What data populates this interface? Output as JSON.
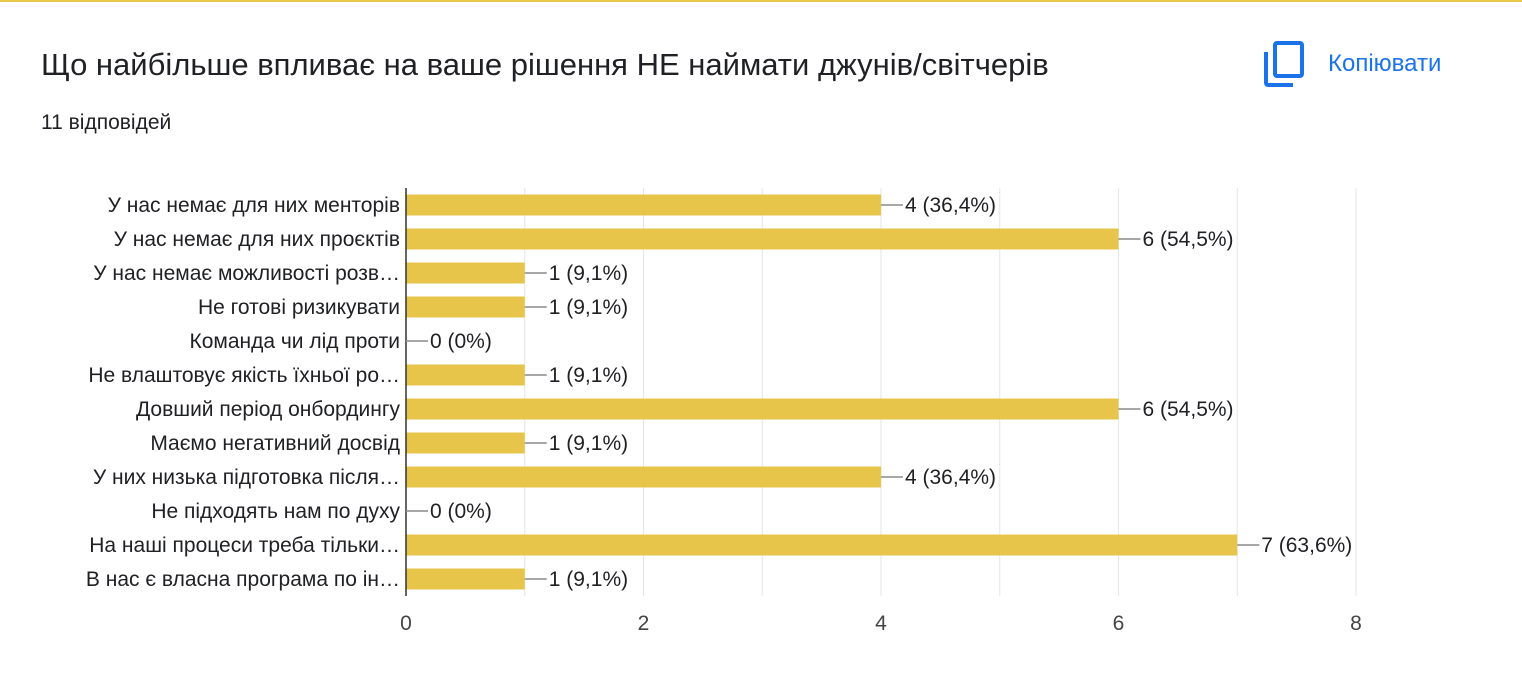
{
  "header": {
    "title": "Що найбільше впливає на ваше рішення НЕ наймати джунів/світчерів",
    "responses": "11 відповідей",
    "copy_label": "Копіювати",
    "copy_icon": "copy-icon"
  },
  "colors": {
    "bar": "#e6c54a",
    "accent": "#1a73e8",
    "top_border": "#e8c848",
    "gridline": "#e6e6e6",
    "axis": "#333333"
  },
  "chart_data": {
    "type": "bar",
    "orientation": "horizontal",
    "categories": [
      "У нас немає для них менторів",
      "У нас немає для них проєктів",
      "У нас немає можливості розв…",
      "Не готові ризикувати",
      "Команда чи лід проти",
      "Не влаштовує якість їхньої ро…",
      "Довший період онбордингу",
      "Маємо негативний досвід",
      "У них низька підготовка після…",
      "Не підходять нам по духу",
      "На наші процеси треба тільки…",
      "В нас є власна програма по ін…"
    ],
    "values": [
      4,
      6,
      1,
      1,
      0,
      1,
      6,
      1,
      4,
      0,
      7,
      1
    ],
    "value_labels": [
      "4 (36,4%)",
      "6 (54,5%)",
      "1 (9,1%)",
      "1 (9,1%)",
      "0 (0%)",
      "1 (9,1%)",
      "6 (54,5%)",
      "1 (9,1%)",
      "4 (36,4%)",
      "0 (0%)",
      "7 (63,6%)",
      "1 (9,1%)"
    ],
    "xlim": [
      0,
      8
    ],
    "xticks": [
      0,
      2,
      4,
      6,
      8
    ],
    "xtick_labels": [
      "0",
      "2",
      "4",
      "6",
      "8"
    ],
    "grid": true
  }
}
